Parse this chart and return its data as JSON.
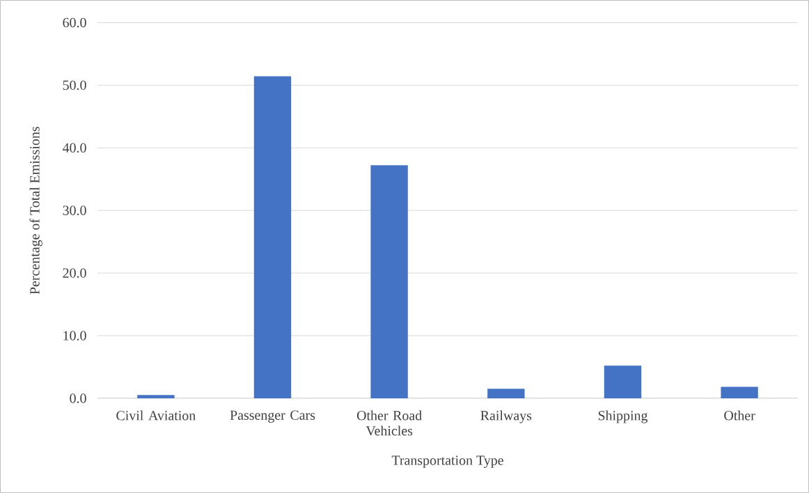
{
  "chart_data": {
    "type": "bar",
    "xlabel": "Transportation  Type",
    "ylabel": "Percentage  of Total Emissions",
    "categories": [
      "Civil Aviation",
      "Passenger Cars",
      "Other Road Vehicles",
      "Railways",
      "Shipping",
      "Other"
    ],
    "values": [
      0.5,
      51.4,
      37.2,
      1.5,
      5.2,
      1.8
    ],
    "color": "#4472c4",
    "ylim": [
      0,
      60
    ],
    "yticks": [
      {
        "value": 0,
        "label": "0.0"
      },
      {
        "value": 10,
        "label": "10.0"
      },
      {
        "value": 20,
        "label": "20.0"
      },
      {
        "value": 30,
        "label": "30.0"
      },
      {
        "value": 40,
        "label": "40.0"
      },
      {
        "value": 50,
        "label": "50.0"
      },
      {
        "value": 60,
        "label": "60.0"
      }
    ],
    "grid": "y"
  }
}
